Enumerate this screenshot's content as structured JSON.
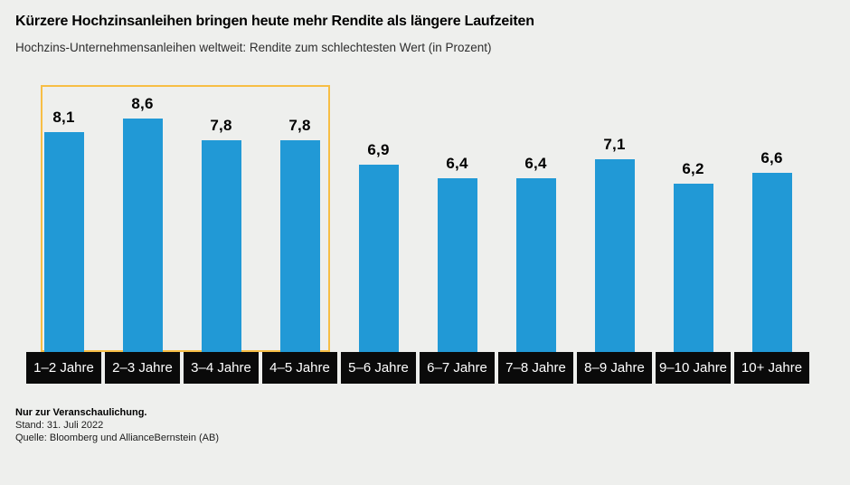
{
  "chart_data": {
    "type": "bar",
    "title": "Kürzere Hochzinsanleihen bringen heute mehr Rendite als längere Laufzeiten",
    "subtitle": "Hochzins-Unternehmensanleihen weltweit: Rendite zum schlechtesten Wert (in Prozent)",
    "categories": [
      "1–2 Jahre",
      "2–3 Jahre",
      "3–4 Jahre",
      "4–5 Jahre",
      "5–6 Jahre",
      "6–7 Jahre",
      "7–8 Jahre",
      "8–9 Jahre",
      "9–10 Jahre",
      "10+ Jahre"
    ],
    "values": [
      8.1,
      8.6,
      7.8,
      7.8,
      6.9,
      6.4,
      6.4,
      7.1,
      6.2,
      6.6
    ],
    "value_labels": [
      "8,1",
      "8,6",
      "7,8",
      "7,8",
      "6,9",
      "6,4",
      "6,4",
      "7,1",
      "6,2",
      "6,6"
    ],
    "xlabel": "",
    "ylabel": "",
    "ylim": [
      0,
      9.8
    ],
    "grid": false,
    "legend": false,
    "axis_labels_style": "black-boxes-white-text",
    "highlight_group": {
      "from": "1–2 Jahre",
      "to": "4–5 Jahre",
      "span_categories": 4,
      "border_color": "#F7BE45"
    },
    "colors": {
      "bar": "#2199D6",
      "background": "#EEEFED",
      "xlabel_bg": "#0A0A0A",
      "xlabel_text": "#FFFFFF",
      "value_label_text": "#000000"
    }
  },
  "footer": {
    "line1": "Nur zur Veranschaulichung.",
    "line2": "Stand: 31. Juli 2022",
    "line3": "Quelle: Bloomberg und AllianceBernstein (AB)"
  }
}
